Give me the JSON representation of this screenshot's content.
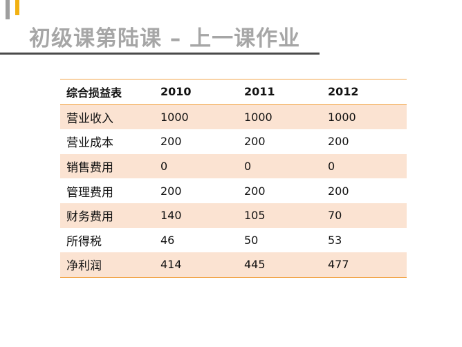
{
  "slide": {
    "title": "初级课第陆课 – 上一课作业"
  },
  "colors": {
    "accent_gold": "#f2b111",
    "accent_gray": "#9e9e9e",
    "title_text": "#a6a6a6",
    "table_rule": "#f2a54a",
    "band_fill": "#fbe3d2"
  },
  "table": {
    "headers": [
      "综合损益表",
      "2010",
      "2011",
      "2012"
    ],
    "rows": [
      [
        "营业收入",
        "1000",
        "1000",
        "1000"
      ],
      [
        "营业成本",
        "200",
        "200",
        "200"
      ],
      [
        "销售费用",
        "0",
        "0",
        "0"
      ],
      [
        "管理费用",
        "200",
        "200",
        "200"
      ],
      [
        "财务费用",
        "140",
        "105",
        "70"
      ],
      [
        "所得税",
        "46",
        "50",
        "53"
      ],
      [
        "净利润",
        "414",
        "445",
        "477"
      ]
    ]
  }
}
